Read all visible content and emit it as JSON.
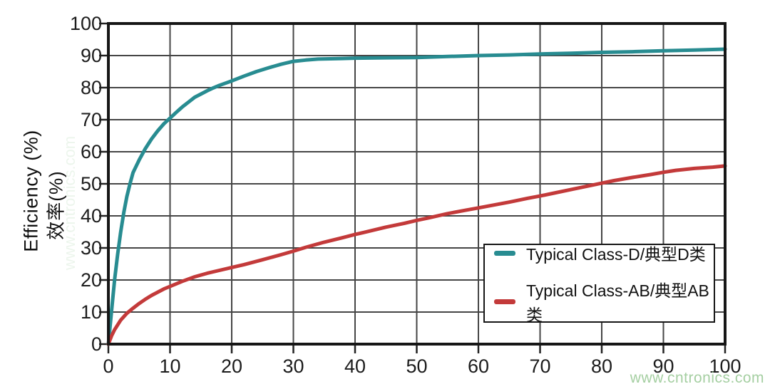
{
  "watermark": {
    "text": "www.cntronics.com",
    "color": "#9cca98"
  },
  "chart_data": {
    "type": "line",
    "title": "",
    "xlabel": "",
    "ylabel": "Efficiency (%)",
    "ylabel_zh": "效率(%)",
    "xlim": [
      0,
      100
    ],
    "ylim": [
      0,
      100
    ],
    "x_ticks": [
      "0",
      "10",
      "20",
      "30",
      "40",
      "50",
      "60",
      "70",
      "80",
      "90",
      "100"
    ],
    "y_ticks": [
      "0",
      "10",
      "20",
      "30",
      "40",
      "50",
      "60",
      "70",
      "80",
      "90",
      "100"
    ],
    "grid": true,
    "legend_position": "lower-right",
    "axis_color": "#161616",
    "grid_color": "#464646",
    "tick_color": "#222222",
    "series": [
      {
        "name": "Typical Class-D/典型D类",
        "color": "#288c91",
        "points": [
          [
            0,
            0
          ],
          [
            0.3,
            6
          ],
          [
            0.6,
            12
          ],
          [
            1,
            20
          ],
          [
            1.5,
            28
          ],
          [
            2,
            35
          ],
          [
            2.5,
            41
          ],
          [
            3,
            46
          ],
          [
            3.5,
            50
          ],
          [
            4,
            53.5
          ],
          [
            5,
            57.5
          ],
          [
            6,
            61
          ],
          [
            7,
            64
          ],
          [
            8,
            66.5
          ],
          [
            9,
            68.7
          ],
          [
            10,
            70.5
          ],
          [
            11,
            72.3
          ],
          [
            12,
            74
          ],
          [
            13,
            75.5
          ],
          [
            14,
            77
          ],
          [
            15,
            78
          ],
          [
            16,
            79
          ],
          [
            17,
            79.9
          ],
          [
            18,
            80.7
          ],
          [
            19,
            81.4
          ],
          [
            20,
            82.1
          ],
          [
            22,
            83.6
          ],
          [
            24,
            85
          ],
          [
            26,
            86.2
          ],
          [
            28,
            87.3
          ],
          [
            30,
            88.2
          ],
          [
            32,
            88.6
          ],
          [
            34,
            88.9
          ],
          [
            36,
            89
          ],
          [
            38,
            89.1
          ],
          [
            40,
            89.2
          ],
          [
            45,
            89.3
          ],
          [
            50,
            89.4
          ],
          [
            55,
            89.7
          ],
          [
            60,
            90
          ],
          [
            65,
            90.2
          ],
          [
            70,
            90.5
          ],
          [
            75,
            90.7
          ],
          [
            80,
            91
          ],
          [
            85,
            91.2
          ],
          [
            90,
            91.5
          ],
          [
            95,
            91.7
          ],
          [
            100,
            92
          ]
        ]
      },
      {
        "name": "Typical Class-AB/典型AB类",
        "color": "#c33a3a",
        "points": [
          [
            0,
            0
          ],
          [
            0.5,
            2.5
          ],
          [
            1,
            4.5
          ],
          [
            2,
            7.5
          ],
          [
            3,
            9.6
          ],
          [
            4,
            11.2
          ],
          [
            5,
            12.7
          ],
          [
            6,
            14
          ],
          [
            7,
            15.2
          ],
          [
            8,
            16.2
          ],
          [
            9,
            17.2
          ],
          [
            10,
            18
          ],
          [
            12,
            19.6
          ],
          [
            14,
            21
          ],
          [
            16,
            22.1
          ],
          [
            18,
            23
          ],
          [
            20,
            23.9
          ],
          [
            22,
            24.8
          ],
          [
            25,
            26.3
          ],
          [
            28,
            27.9
          ],
          [
            30,
            29
          ],
          [
            32,
            30.2
          ],
          [
            35,
            31.8
          ],
          [
            38,
            33.2
          ],
          [
            40,
            34.2
          ],
          [
            42,
            35.1
          ],
          [
            45,
            36.5
          ],
          [
            48,
            37.7
          ],
          [
            50,
            38.6
          ],
          [
            52,
            39.4
          ],
          [
            55,
            40.7
          ],
          [
            58,
            41.8
          ],
          [
            60,
            42.5
          ],
          [
            62,
            43.2
          ],
          [
            65,
            44.3
          ],
          [
            68,
            45.5
          ],
          [
            70,
            46.2
          ],
          [
            72,
            47
          ],
          [
            75,
            48.2
          ],
          [
            78,
            49.4
          ],
          [
            80,
            50.2
          ],
          [
            82,
            51
          ],
          [
            85,
            52
          ],
          [
            88,
            52.9
          ],
          [
            90,
            53.6
          ],
          [
            92,
            54.2
          ],
          [
            95,
            54.8
          ],
          [
            98,
            55.2
          ],
          [
            100,
            55.6
          ]
        ]
      }
    ]
  }
}
